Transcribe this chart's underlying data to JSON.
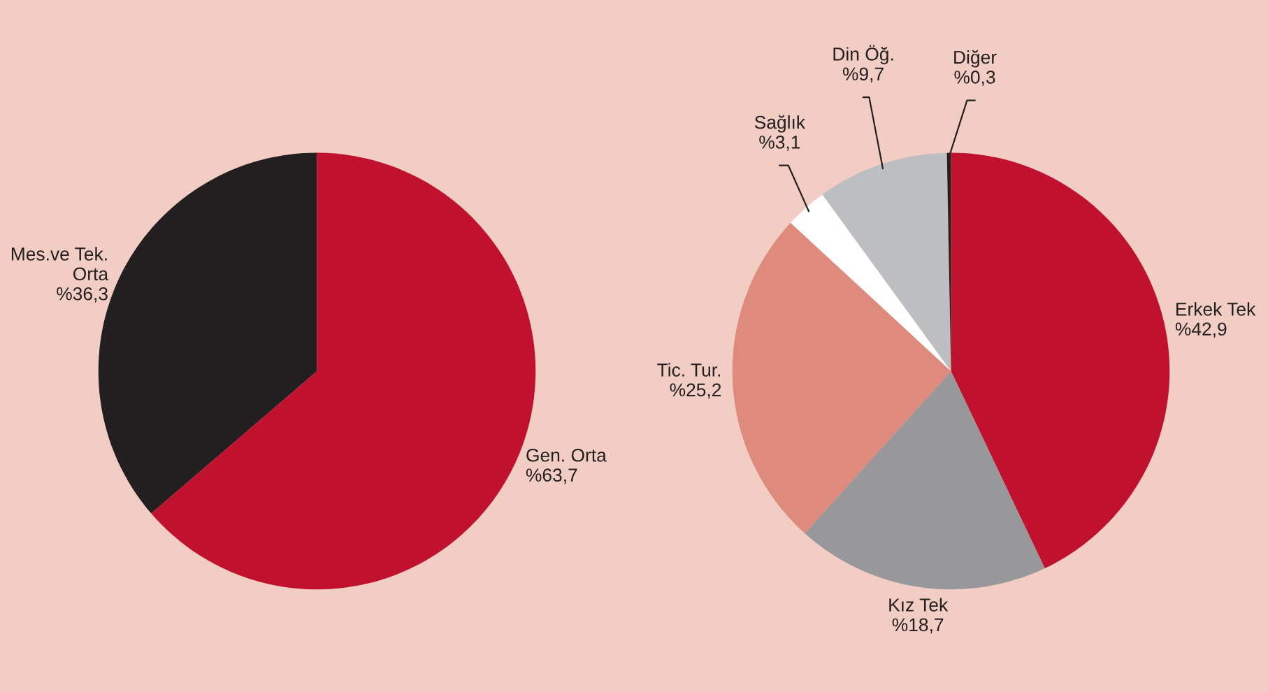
{
  "chart_data": [
    {
      "type": "pie",
      "categories": [
        "Mes.ve Tek.\nOrta",
        "Gen. Orta"
      ],
      "values": [
        36.3,
        63.7
      ],
      "value_labels": [
        "%36,3",
        "%63,7"
      ],
      "colors": [
        "#231f20",
        "#c0112f"
      ]
    },
    {
      "type": "pie",
      "categories": [
        "Erkek Tek",
        "Kız Tek",
        "Tic. Tur.",
        "Sağlık",
        "Din Öğ.",
        "Diğer"
      ],
      "values": [
        42.9,
        18.7,
        25.2,
        3.1,
        9.7,
        0.3
      ],
      "value_labels": [
        "%42,9",
        "%18,7",
        "%25,2",
        "%3,1",
        "%9,7",
        "%0,3"
      ],
      "colors": [
        "#c0112f",
        "#98989b",
        "#de8a7c",
        "#ffffff",
        "#bcbec0",
        "#231f20"
      ]
    }
  ]
}
